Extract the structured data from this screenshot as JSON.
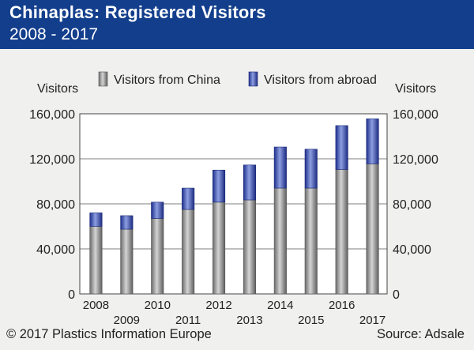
{
  "header": {
    "title": "Chinaplas: Registered Visitors",
    "subtitle": "2008 - 2017"
  },
  "footer": {
    "copyright": "© 2017 Plastics Information Europe",
    "source": "Source: Adsale"
  },
  "colors": {
    "header_bg": "#123e8c",
    "china": "#8c8c8c",
    "abroad": "#3c53b6"
  },
  "chart_data": {
    "type": "bar",
    "stacked": true,
    "categories": [
      "2008",
      "2009",
      "2010",
      "2011",
      "2012",
      "2013",
      "2014",
      "2015",
      "2016",
      "2017"
    ],
    "series": [
      {
        "name": "Visitors from China",
        "values": [
          60000,
          57500,
          67000,
          75000,
          81500,
          83500,
          94000,
          94000,
          110500,
          115500
        ]
      },
      {
        "name": "Visitors from abroad",
        "values": [
          12000,
          12000,
          14500,
          19000,
          28500,
          31000,
          36500,
          34500,
          39000,
          40000
        ]
      }
    ],
    "ylabel_left": "Visitors",
    "ylabel_right": "Visitors",
    "ylim": [
      0,
      160000
    ],
    "yticks": [
      0,
      40000,
      80000,
      120000,
      160000
    ],
    "ytick_labels": [
      "0",
      "40,000",
      "80,000",
      "120,000",
      "160,000"
    ],
    "grid": true,
    "legend": "top"
  }
}
